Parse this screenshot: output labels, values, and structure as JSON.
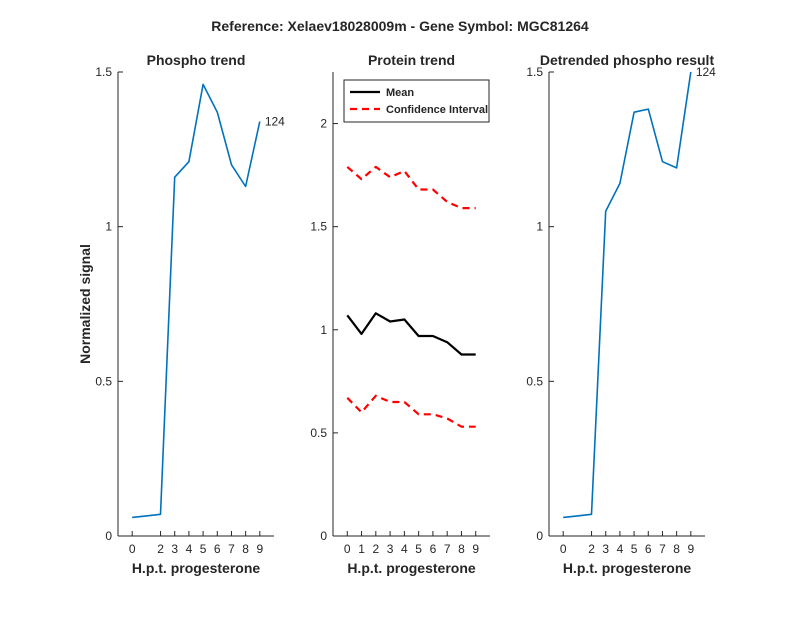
{
  "suptitle": "Reference:  Xelaev18028009m - Gene Symbol:  MGC81264",
  "chart_data": [
    {
      "type": "line",
      "title": "Phospho trend",
      "xlabel": "H.p.t. progesterone",
      "ylabel": "Normalized signal",
      "x": [
        0,
        1,
        2,
        3,
        4,
        5,
        6,
        7,
        8,
        9
      ],
      "xlim": [
        -1,
        10
      ],
      "ylim": [
        0,
        1.5
      ],
      "xticks": [
        0,
        2,
        3,
        4,
        5,
        6,
        7,
        8,
        9
      ],
      "yticks": [
        0,
        0.5,
        1,
        1.5
      ],
      "series": [
        {
          "values": [
            0.06,
            0.065,
            0.07,
            1.16,
            1.21,
            1.46,
            1.37,
            1.2,
            1.13,
            1.34
          ],
          "color": "#0072BD"
        }
      ],
      "annotation": {
        "text": "124",
        "x": 9,
        "y": 1.34
      },
      "grid": false
    },
    {
      "type": "line",
      "title": "Protein trend",
      "xlabel": "H.p.t. progesterone",
      "ylabel": "",
      "x": [
        0,
        1,
        2,
        3,
        4,
        5,
        6,
        7,
        8,
        9
      ],
      "xlim": [
        -1,
        10
      ],
      "ylim": [
        0,
        2.25
      ],
      "xticks": [
        0,
        1,
        2,
        3,
        4,
        5,
        6,
        7,
        8,
        9
      ],
      "yticks": [
        0,
        0.5,
        1,
        1.5,
        2
      ],
      "series": [
        {
          "name": "Mean",
          "values": [
            1.07,
            0.98,
            1.08,
            1.04,
            1.05,
            0.97,
            0.97,
            0.94,
            0.88,
            0.88
          ],
          "color": "#000000",
          "dash": "solid"
        },
        {
          "name": "Confidence Interval",
          "values": [
            1.79,
            1.73,
            1.79,
            1.74,
            1.77,
            1.68,
            1.68,
            1.62,
            1.59,
            1.59
          ],
          "color": "#FF0000",
          "dash": "dashed"
        },
        {
          "values": [
            0.67,
            0.6,
            0.68,
            0.65,
            0.65,
            0.59,
            0.59,
            0.57,
            0.53,
            0.53
          ],
          "color": "#FF0000",
          "dash": "dashed"
        }
      ],
      "legend": "top-left",
      "grid": false
    },
    {
      "type": "line",
      "title": "Detrended phospho result",
      "xlabel": "H.p.t. progesterone",
      "ylabel": "",
      "x": [
        0,
        1,
        2,
        3,
        4,
        5,
        6,
        7,
        8,
        9
      ],
      "xlim": [
        -1,
        10
      ],
      "ylim": [
        0,
        1.5
      ],
      "xticks": [
        0,
        2,
        3,
        4,
        5,
        6,
        7,
        8,
        9
      ],
      "yticks": [
        0,
        0.5,
        1,
        1.5
      ],
      "series": [
        {
          "values": [
            0.06,
            0.065,
            0.07,
            1.05,
            1.14,
            1.37,
            1.38,
            1.21,
            1.19,
            1.5
          ],
          "color": "#0072BD"
        }
      ],
      "annotation": {
        "text": "124",
        "x": 9,
        "y": 1.5
      },
      "grid": false
    }
  ]
}
